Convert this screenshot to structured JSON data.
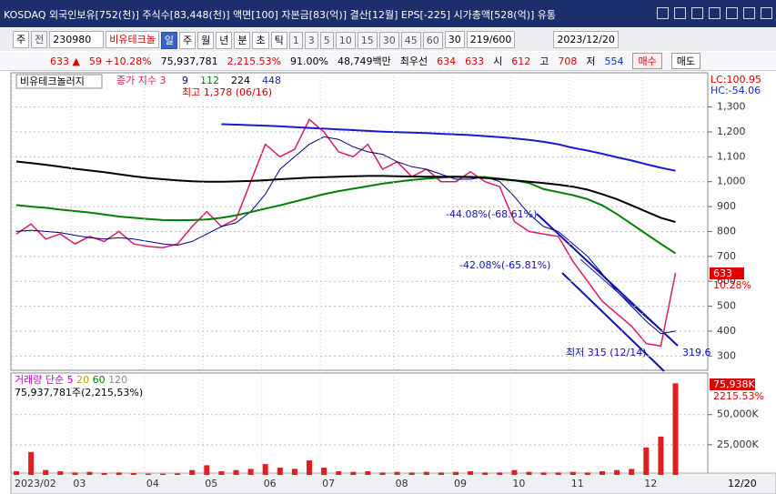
{
  "header": {
    "title": "KOSDAQ 외국인보유[752(천)] 주식수[83,448(천)] 액면[100] 자본금[83(억)] 결산[12월] EPS[-225] 시가총액[528(억)] 유통"
  },
  "toolbar": {
    "market": "주",
    "prev": "전",
    "code": "230980",
    "name": "비유테크놀",
    "periods": [
      "일",
      "주",
      "월",
      "년",
      "분",
      "초",
      "틱"
    ],
    "intervals": [
      "1",
      "3",
      "5",
      "10",
      "15",
      "30",
      "45",
      "60"
    ],
    "interval_select": "30",
    "count": "219/600",
    "date": "2023/12/20"
  },
  "quote": {
    "price": "633 ▲",
    "change": "59 +10.28%",
    "volume": "75,937,781",
    "volume_ratio": "2,215.53%",
    "strength": "91.00%",
    "amount": "48,749백만",
    "best_label": "최우선",
    "ask": "634",
    "bid": "633",
    "open_label": "시",
    "open": "612",
    "high_label": "고",
    "high": "708",
    "low_label": "저",
    "low": "554",
    "buy": "매수",
    "sell": "매도"
  },
  "chart_data": [
    {
      "type": "line",
      "legend_title": "비유테크놀러지",
      "annotations": [
        "최고 1,378 (06/16)",
        "-44.08%(-68.61%)",
        "-42.08%(-65.81%)",
        "최저 315 (12/14)",
        "319.6"
      ],
      "lc": "LC:100.95",
      "hc": "HC:-54.06",
      "last_label": "633",
      "last_change": "10.28%",
      "ylim": [
        250,
        1430
      ],
      "yticks": [
        {
          "value": 1300,
          "label": "1,300"
        },
        {
          "value": 1200,
          "label": "1,200"
        },
        {
          "value": 1100,
          "label": "1,100"
        },
        {
          "value": 1000,
          "label": "1,000"
        },
        900,
        800,
        700,
        600,
        500,
        400,
        300
      ],
      "grid": true,
      "series": [
        {
          "name": "종가 지수 3",
          "color": "#d81b60",
          "values": [
            790,
            830,
            770,
            790,
            750,
            780,
            760,
            800,
            750,
            740,
            735,
            750,
            820,
            880,
            820,
            850,
            1000,
            1150,
            1100,
            1130,
            1250,
            1200,
            1120,
            1100,
            1150,
            1050,
            1080,
            1020,
            1050,
            1000,
            1000,
            1040,
            1000,
            980,
            840,
            800,
            790,
            780,
            680,
            600,
            520,
            470,
            420,
            350,
            340,
            633
          ]
        },
        {
          "name": "9",
          "color": "#000080",
          "values": [
            800,
            805,
            800,
            795,
            785,
            775,
            770,
            775,
            770,
            760,
            750,
            745,
            760,
            790,
            820,
            835,
            880,
            950,
            1050,
            1100,
            1150,
            1180,
            1170,
            1140,
            1120,
            1110,
            1080,
            1060,
            1050,
            1030,
            1010,
            1010,
            1020,
            1000,
            940,
            870,
            820,
            800,
            750,
            700,
            630,
            560,
            500,
            440,
            390,
            400
          ]
        },
        {
          "name": "112",
          "color": "#008000",
          "values": [
            906,
            900,
            895,
            888,
            882,
            876,
            868,
            860,
            855,
            850,
            846,
            845,
            846,
            848,
            855,
            865,
            878,
            892,
            905,
            920,
            935,
            950,
            962,
            972,
            982,
            992,
            1000,
            1007,
            1012,
            1016,
            1020,
            1020,
            1018,
            1012,
            1005,
            995,
            970,
            958,
            946,
            930,
            905,
            870,
            830,
            790,
            750,
            712
          ]
        },
        {
          "name": "224",
          "color": "#000000",
          "values": [
            1081,
            1075,
            1068,
            1060,
            1052,
            1045,
            1038,
            1030,
            1022,
            1015,
            1010,
            1005,
            1002,
            1000,
            1000,
            1001,
            1003,
            1006,
            1010,
            1013,
            1016,
            1018,
            1020,
            1022,
            1023,
            1023,
            1022,
            1021,
            1020,
            1020,
            1020,
            1018,
            1015,
            1010,
            1005,
            1000,
            994,
            988,
            980,
            968,
            950,
            930,
            905,
            880,
            855,
            838
          ]
        },
        {
          "name": "448",
          "color": "#1a1ad0",
          "values": [
            null,
            null,
            null,
            null,
            null,
            null,
            null,
            null,
            null,
            null,
            null,
            null,
            null,
            null,
            1231,
            1229,
            1227,
            1225,
            1222,
            1219,
            1216,
            1213,
            1210,
            1207,
            1204,
            1201,
            1199,
            1197,
            1195,
            1192,
            1190,
            1187,
            1183,
            1179,
            1174,
            1168,
            1160,
            1150,
            1136,
            1125,
            1112,
            1098,
            1085,
            1070,
            1056,
            1044
          ]
        }
      ]
    },
    {
      "type": "bar",
      "summary": "75,937,781주(2,215,53%)",
      "ma_labels": [
        "단순 5",
        "20",
        "60",
        "120"
      ],
      "last_label": "75,938K",
      "last_ratio": "2215.53%",
      "end_label": "12/20",
      "categories": [
        "2023/02",
        null,
        null,
        null,
        "03",
        null,
        null,
        null,
        null,
        "04",
        null,
        null,
        null,
        "05",
        null,
        null,
        null,
        "06",
        null,
        null,
        null,
        "07",
        null,
        null,
        null,
        null,
        "08",
        null,
        null,
        null,
        "09",
        null,
        null,
        null,
        "10",
        null,
        null,
        null,
        "11",
        null,
        null,
        null,
        null,
        "12",
        null,
        null
      ],
      "ylim": [
        0,
        83000
      ],
      "yticks": [
        {
          "value": 25000,
          "label": "25,000K"
        },
        {
          "value": 50000,
          "label": "50,000K"
        }
      ],
      "series": [
        {
          "name": "거래량",
          "color": "#e02020",
          "values": [
            3000,
            19000,
            4000,
            3000,
            2000,
            2500,
            1500,
            2000,
            1500,
            1000,
            1000,
            1200,
            4000,
            8000,
            3000,
            4000,
            5000,
            9000,
            6000,
            5000,
            12000,
            6000,
            3000,
            2500,
            3000,
            2000,
            2500,
            2000,
            2500,
            2000,
            2500,
            3000,
            2000,
            2000,
            4000,
            2500,
            2000,
            2000,
            2500,
            2000,
            3000,
            4000,
            5000,
            22700,
            31800,
            75938
          ]
        }
      ]
    }
  ]
}
